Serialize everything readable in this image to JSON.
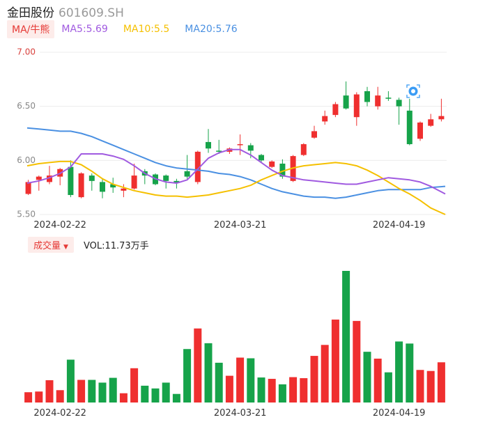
{
  "header": {
    "name": "金田股份",
    "code": "601609.SH"
  },
  "legend": {
    "ma_tag": "MA/牛熊",
    "items": [
      {
        "text": "MA5:5.69",
        "color": "#a05ae0"
      },
      {
        "text": "MA10:5.5",
        "color": "#f5c000"
      },
      {
        "text": "MA20:5.76",
        "color": "#4a90e2"
      }
    ]
  },
  "volume_legend": {
    "tag": "成交量",
    "text": "VOL:11.73万手"
  },
  "colors": {
    "up": "#ef2f2f",
    "down": "#16a34a",
    "ma5": "#a05ae0",
    "ma10": "#f5c000",
    "ma20": "#4a90e2",
    "grid": "#ececec",
    "axis_label": "#d9423e"
  },
  "chart_data": [
    {
      "type": "candlestick",
      "y_ticks": [
        "7.00",
        "6.50",
        "6.00",
        "5.50"
      ],
      "ylim": [
        5.5,
        7.0
      ],
      "x_tick_labels": [
        {
          "label": "2024-02-22",
          "index": 3
        },
        {
          "label": "2024-03-21",
          "index": 20
        },
        {
          "label": "2024-04-19",
          "index": 35
        }
      ],
      "candles": [
        {
          "o": 5.69,
          "c": 5.8,
          "h": 5.82,
          "l": 5.68
        },
        {
          "o": 5.82,
          "c": 5.85,
          "h": 5.86,
          "l": 5.72
        },
        {
          "o": 5.8,
          "c": 5.86,
          "h": 5.95,
          "l": 5.78
        },
        {
          "o": 5.85,
          "c": 5.92,
          "h": 5.93,
          "l": 5.77
        },
        {
          "o": 5.94,
          "c": 5.68,
          "h": 6.0,
          "l": 5.66
        },
        {
          "o": 5.66,
          "c": 5.88,
          "h": 5.89,
          "l": 5.65
        },
        {
          "o": 5.86,
          "c": 5.81,
          "h": 5.88,
          "l": 5.72
        },
        {
          "o": 5.8,
          "c": 5.71,
          "h": 5.83,
          "l": 5.65
        },
        {
          "o": 5.78,
          "c": 5.75,
          "h": 5.84,
          "l": 5.7
        },
        {
          "o": 5.72,
          "c": 5.74,
          "h": 5.78,
          "l": 5.66
        },
        {
          "o": 5.74,
          "c": 5.86,
          "h": 5.97,
          "l": 5.73
        },
        {
          "o": 5.9,
          "c": 5.86,
          "h": 5.92,
          "l": 5.78
        },
        {
          "o": 5.87,
          "c": 5.78,
          "h": 5.88,
          "l": 5.77
        },
        {
          "o": 5.86,
          "c": 5.81,
          "h": 5.87,
          "l": 5.74
        },
        {
          "o": 5.81,
          "c": 5.79,
          "h": 5.83,
          "l": 5.74
        },
        {
          "o": 5.9,
          "c": 5.85,
          "h": 6.05,
          "l": 5.83
        },
        {
          "o": 5.8,
          "c": 6.08,
          "h": 6.09,
          "l": 5.78
        },
        {
          "o": 6.17,
          "c": 6.11,
          "h": 6.29,
          "l": 6.07
        },
        {
          "o": 6.09,
          "c": 6.08,
          "h": 6.19,
          "l": 6.06
        },
        {
          "o": 6.08,
          "c": 6.11,
          "h": 6.12,
          "l": 6.06
        },
        {
          "o": 6.15,
          "c": 6.15,
          "h": 6.24,
          "l": 6.05
        },
        {
          "o": 6.14,
          "c": 6.09,
          "h": 6.16,
          "l": 6.02
        },
        {
          "o": 6.05,
          "c": 6.0,
          "h": 6.06,
          "l": 5.98
        },
        {
          "o": 5.94,
          "c": 5.99,
          "h": 6.0,
          "l": 5.93
        },
        {
          "o": 5.97,
          "c": 5.85,
          "h": 6.01,
          "l": 5.83
        },
        {
          "o": 5.81,
          "c": 6.04,
          "h": 6.05,
          "l": 5.8
        },
        {
          "o": 6.05,
          "c": 6.15,
          "h": 6.16,
          "l": 6.04
        },
        {
          "o": 6.21,
          "c": 6.27,
          "h": 6.32,
          "l": 6.2
        },
        {
          "o": 6.36,
          "c": 6.41,
          "h": 6.46,
          "l": 6.33
        },
        {
          "o": 6.42,
          "c": 6.52,
          "h": 6.54,
          "l": 6.4
        },
        {
          "o": 6.6,
          "c": 6.48,
          "h": 6.73,
          "l": 6.47
        },
        {
          "o": 6.4,
          "c": 6.61,
          "h": 6.63,
          "l": 6.32
        },
        {
          "o": 6.64,
          "c": 6.54,
          "h": 6.68,
          "l": 6.5
        },
        {
          "o": 6.5,
          "c": 6.6,
          "h": 6.68,
          "l": 6.47
        },
        {
          "o": 6.58,
          "c": 6.57,
          "h": 6.64,
          "l": 6.55
        },
        {
          "o": 6.56,
          "c": 6.5,
          "h": 6.58,
          "l": 6.33
        },
        {
          "o": 6.46,
          "c": 6.15,
          "h": 6.57,
          "l": 6.14
        },
        {
          "o": 6.2,
          "c": 6.35,
          "h": 6.36,
          "l": 6.18
        },
        {
          "o": 6.32,
          "c": 6.38,
          "h": 6.43,
          "l": 6.31
        },
        {
          "o": 6.38,
          "c": 6.41,
          "h": 6.57,
          "l": 6.36
        }
      ],
      "ma5": [
        5.79,
        5.81,
        5.84,
        5.88,
        5.94,
        6.06,
        6.06,
        6.06,
        6.04,
        6.01,
        5.95,
        5.88,
        5.83,
        5.8,
        5.79,
        5.82,
        5.92,
        6.02,
        6.07,
        6.1,
        6.1,
        6.05,
        5.98,
        5.91,
        5.86,
        5.84,
        5.82,
        5.81,
        5.8,
        5.79,
        5.78,
        5.78,
        5.8,
        5.82,
        5.84,
        5.83,
        5.82,
        5.8,
        5.76,
        5.69
      ],
      "ma10": [
        5.95,
        5.97,
        5.98,
        5.99,
        5.99,
        5.96,
        5.9,
        5.83,
        5.78,
        5.75,
        5.72,
        5.7,
        5.68,
        5.67,
        5.67,
        5.66,
        5.67,
        5.68,
        5.7,
        5.72,
        5.74,
        5.77,
        5.82,
        5.86,
        5.9,
        5.93,
        5.95,
        5.96,
        5.97,
        5.98,
        5.97,
        5.95,
        5.91,
        5.86,
        5.8,
        5.74,
        5.69,
        5.63,
        5.56,
        5.5
      ],
      "ma20": [
        6.3,
        6.29,
        6.28,
        6.27,
        6.27,
        6.25,
        6.22,
        6.18,
        6.14,
        6.1,
        6.06,
        6.02,
        5.98,
        5.95,
        5.93,
        5.92,
        5.91,
        5.9,
        5.88,
        5.87,
        5.85,
        5.82,
        5.78,
        5.74,
        5.71,
        5.69,
        5.67,
        5.66,
        5.66,
        5.65,
        5.66,
        5.68,
        5.7,
        5.72,
        5.73,
        5.73,
        5.73,
        5.73,
        5.75,
        5.76
      ],
      "volume": [
        3.0,
        3.2,
        6.5,
        3.6,
        12.5,
        6.6,
        6.6,
        5.8,
        7.2,
        2.7,
        10.0,
        4.9,
        4.1,
        5.8,
        2.5,
        15.6,
        21.6,
        17.3,
        11.6,
        7.8,
        13.1,
        12.9,
        7.3,
        6.9,
        5.3,
        7.4,
        7.1,
        13.6,
        16.8,
        24.2,
        38.4,
        23.8,
        14.8,
        12.8,
        8.8,
        17.8,
        17.2,
        9.5,
        9.2,
        11.73
      ]
    }
  ]
}
